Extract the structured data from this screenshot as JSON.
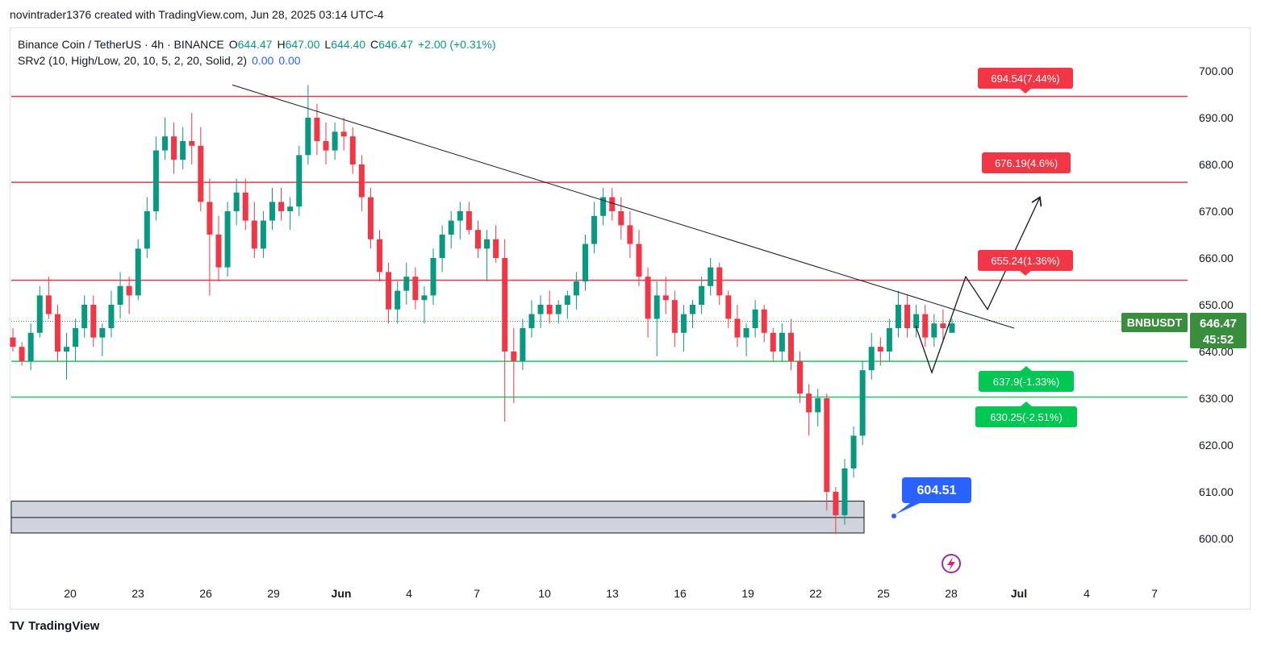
{
  "header": {
    "attribution": "novintrader1376 created with TradingView.com, Jun 28, 2025 03:14 UTC-4"
  },
  "legend": {
    "symbol_line": "Binance Coin / TetherUS · 4h · BINANCE",
    "open_label": "O",
    "open": "644.47",
    "high_label": "H",
    "high": "647.00",
    "low_label": "L",
    "low": "644.40",
    "close_label": "C",
    "close": "646.47",
    "change": "+2.00 (+0.31%)",
    "indicator": "SRv2 (10, High/Low, 20, 10, 5, 2, 20, Solid, 2)",
    "ind_v1": "0.00",
    "ind_v2": "0.00"
  },
  "footer": {
    "brand": "TradingView",
    "logo_mark": "TV"
  },
  "colors": {
    "up": "#089981",
    "down": "#f23645",
    "resistance": "#f23645",
    "support": "#22c55e",
    "badge_green": "#00c853",
    "price_tag": "#388e3c",
    "note_blue": "#2962ff",
    "zone_fill": "#d1d4dc"
  },
  "chart_data": {
    "type": "candlestick",
    "symbol": "BNBUSDT",
    "timeframe": "4h",
    "ylim": [
      594,
      704
    ],
    "yticks": [
      "700.00",
      "690.00",
      "680.00",
      "670.00",
      "660.00",
      "650.00",
      "640.00",
      "630.00",
      "620.00",
      "610.00",
      "600.00"
    ],
    "xticks": [
      "20",
      "23",
      "26",
      "29",
      "Jun",
      "4",
      "7",
      "10",
      "13",
      "16",
      "19",
      "22",
      "25",
      "28",
      "Jul",
      "4",
      "7"
    ],
    "current_price": {
      "symbol": "BNBUSDT",
      "price": "646.47",
      "countdown": "45:52",
      "value": 646.47
    },
    "resistance_levels": [
      {
        "value": 694.54,
        "label": "694.54(7.44%)"
      },
      {
        "value": 676.19,
        "label": "676.19(4.6%)"
      },
      {
        "value": 655.24,
        "label": "655.24(1.36%)"
      }
    ],
    "support_levels": [
      {
        "value": 637.9,
        "label": "637.9(-1.33%)"
      },
      {
        "value": 630.25,
        "label": "630.25(-2.51%)"
      }
    ],
    "demand_zone": {
      "top": 608.0,
      "mid": 604.51,
      "bottom": 601.2
    },
    "annotation": {
      "label": "604.51",
      "value": 604.51
    },
    "trendline": {
      "from": [
        "May 27",
        697.0
      ],
      "to": [
        "Jun 29",
        645.0
      ]
    },
    "projection_path": [
      [
        "Jun 27",
        635.5
      ],
      [
        "Jun 28",
        656.0
      ],
      [
        "Jun 29",
        649.0
      ],
      [
        "Jun 30",
        670.0
      ],
      [
        "Jul 1",
        673.0
      ]
    ],
    "candles": [
      [
        643,
        645,
        640,
        641
      ],
      [
        641,
        642,
        637,
        638
      ],
      [
        638,
        646,
        636,
        644
      ],
      [
        644,
        654,
        643,
        652
      ],
      [
        652,
        656,
        647,
        648
      ],
      [
        648,
        650,
        638,
        640
      ],
      [
        640,
        644,
        634,
        641
      ],
      [
        641,
        647,
        638,
        645
      ],
      [
        645,
        652,
        643,
        650
      ],
      [
        650,
        652,
        641,
        643
      ],
      [
        643,
        646,
        639,
        645
      ],
      [
        645,
        653,
        643,
        650
      ],
      [
        650,
        657,
        647,
        654
      ],
      [
        654,
        656,
        648,
        652
      ],
      [
        652,
        664,
        651,
        662
      ],
      [
        662,
        673,
        660,
        670
      ],
      [
        670,
        686,
        668,
        683
      ],
      [
        683,
        690,
        681,
        686
      ],
      [
        686,
        689,
        678,
        681
      ],
      [
        681,
        688,
        679,
        685
      ],
      [
        685,
        691,
        680,
        684
      ],
      [
        684,
        688,
        670,
        672
      ],
      [
        672,
        677,
        652,
        665
      ],
      [
        665,
        669,
        655,
        658
      ],
      [
        658,
        672,
        656,
        670
      ],
      [
        670,
        677,
        667,
        674
      ],
      [
        674,
        677,
        666,
        668
      ],
      [
        668,
        672,
        660,
        662
      ],
      [
        662,
        670,
        660,
        668
      ],
      [
        668,
        675,
        666,
        672
      ],
      [
        672,
        675,
        668,
        670
      ],
      [
        670,
        673,
        666,
        671
      ],
      [
        671,
        684,
        669,
        682
      ],
      [
        682,
        697,
        680,
        690
      ],
      [
        690,
        693,
        682,
        685
      ],
      [
        685,
        689,
        680,
        683
      ],
      [
        683,
        689,
        681,
        687
      ],
      [
        687,
        690,
        683,
        686
      ],
      [
        686,
        688,
        678,
        680
      ],
      [
        680,
        682,
        670,
        673
      ],
      [
        673,
        675,
        662,
        664
      ],
      [
        664,
        666,
        655,
        657
      ],
      [
        657,
        659,
        646,
        649
      ],
      [
        649,
        655,
        646,
        653
      ],
      [
        653,
        659,
        650,
        656
      ],
      [
        656,
        658,
        649,
        651
      ],
      [
        651,
        654,
        646,
        652
      ],
      [
        652,
        662,
        650,
        660
      ],
      [
        660,
        667,
        657,
        665
      ],
      [
        665,
        670,
        662,
        668
      ],
      [
        668,
        672,
        664,
        670
      ],
      [
        670,
        672,
        665,
        666
      ],
      [
        666,
        668,
        660,
        662
      ],
      [
        662,
        666,
        655,
        664
      ],
      [
        664,
        667,
        659,
        660
      ],
      [
        660,
        664,
        625,
        640
      ],
      [
        640,
        645,
        629,
        638
      ],
      [
        638,
        647,
        636,
        645
      ],
      [
        645,
        651,
        643,
        648
      ],
      [
        648,
        652,
        645,
        650
      ],
      [
        650,
        653,
        646,
        648
      ],
      [
        648,
        651,
        646,
        650
      ],
      [
        650,
        653,
        647,
        652
      ],
      [
        652,
        657,
        649,
        655
      ],
      [
        655,
        665,
        653,
        663
      ],
      [
        663,
        672,
        661,
        669
      ],
      [
        669,
        675,
        667,
        673
      ],
      [
        673,
        675,
        668,
        670
      ],
      [
        670,
        673,
        664,
        667
      ],
      [
        667,
        670,
        660,
        663
      ],
      [
        663,
        666,
        654,
        656
      ],
      [
        656,
        658,
        643,
        647
      ],
      [
        647,
        655,
        639,
        652
      ],
      [
        652,
        656,
        648,
        651
      ],
      [
        651,
        653,
        641,
        644
      ],
      [
        644,
        650,
        640,
        648
      ],
      [
        648,
        651,
        645,
        650
      ],
      [
        650,
        656,
        648,
        654
      ],
      [
        654,
        660,
        652,
        658
      ],
      [
        658,
        659,
        650,
        652
      ],
      [
        652,
        653,
        645,
        647
      ],
      [
        647,
        650,
        641,
        643
      ],
      [
        643,
        646,
        639,
        645
      ],
      [
        645,
        651,
        643,
        649
      ],
      [
        649,
        650,
        642,
        644
      ],
      [
        644,
        645,
        638,
        640
      ],
      [
        640,
        646,
        638,
        644
      ],
      [
        644,
        647,
        636,
        638
      ],
      [
        638,
        640,
        629,
        631
      ],
      [
        631,
        633,
        622,
        627
      ],
      [
        627,
        632,
        624,
        630
      ],
      [
        630,
        631,
        606,
        610
      ],
      [
        610,
        611,
        601,
        605
      ],
      [
        605,
        617,
        603,
        615
      ],
      [
        615,
        624,
        613,
        622
      ],
      [
        622,
        638,
        620,
        636
      ],
      [
        636,
        644,
        634,
        641
      ],
      [
        641,
        643,
        637,
        640
      ],
      [
        640,
        647,
        638,
        645
      ],
      [
        645,
        653,
        643,
        650
      ],
      [
        650,
        652,
        643,
        645
      ],
      [
        645,
        650,
        643,
        648
      ],
      [
        648,
        650,
        641,
        643
      ],
      [
        643,
        648,
        641,
        646
      ],
      [
        646,
        649,
        642,
        645
      ],
      [
        644,
        647,
        644,
        646
      ]
    ]
  }
}
